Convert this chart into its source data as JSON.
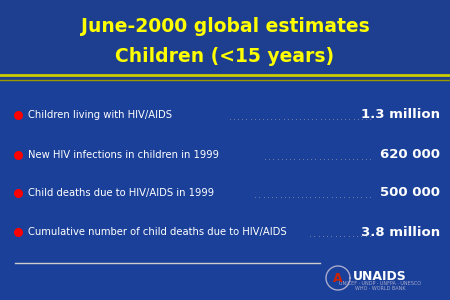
{
  "title_line1": "June-2000 global estimates",
  "title_line2": "Children (<15 years)",
  "title_color": "#FFFF00",
  "bg_color": "#1a4099",
  "header_bg_color": "#1a3a8c",
  "separator_color_thick": "#AAAA00",
  "separator_color_thin": "#888800",
  "text_color": "#FFFFFF",
  "value_color": "#FFFFFF",
  "bullet_color": "#FF0000",
  "items": [
    {
      "label": "Children living with HIV/AIDS",
      "value": "1.3 million"
    },
    {
      "label": "New HIV infections in children in 1999",
      "value": "620 000"
    },
    {
      "label": "Child deaths due to HIV/AIDS in 1999",
      "value": "500 000"
    },
    {
      "label": "Cumulative number of child deaths due to HIV/AIDS",
      "value": "3.8 million"
    }
  ],
  "dot_line_color": "#8888AA",
  "footer_line_color": "#CCCCCC",
  "unaids_color": "#FFFFFF",
  "fig_width": 4.5,
  "fig_height": 3.0,
  "dpi": 100
}
